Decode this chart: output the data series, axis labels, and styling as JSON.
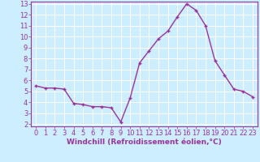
{
  "x": [
    0,
    1,
    2,
    3,
    4,
    5,
    6,
    7,
    8,
    9,
    10,
    11,
    12,
    13,
    14,
    15,
    16,
    17,
    18,
    19,
    20,
    21,
    22,
    23
  ],
  "y": [
    5.5,
    5.3,
    5.3,
    5.2,
    3.9,
    3.8,
    3.6,
    3.6,
    3.5,
    2.2,
    4.4,
    7.6,
    8.7,
    9.8,
    10.5,
    11.8,
    13.0,
    12.4,
    11.0,
    7.8,
    6.5,
    5.2,
    5.0,
    4.5
  ],
  "line_color": "#993399",
  "marker": "+",
  "marker_size": 3,
  "xlabel": "Windchill (Refroidissement éolien,°C)",
  "ylabel": "",
  "title": "",
  "xlim": [
    -0.5,
    23.5
  ],
  "ylim": [
    1.8,
    13.2
  ],
  "yticks": [
    2,
    3,
    4,
    5,
    6,
    7,
    8,
    9,
    10,
    11,
    12,
    13
  ],
  "xticks": [
    0,
    1,
    2,
    3,
    4,
    5,
    6,
    7,
    8,
    9,
    10,
    11,
    12,
    13,
    14,
    15,
    16,
    17,
    18,
    19,
    20,
    21,
    22,
    23
  ],
  "bg_color": "#cceeff",
  "grid_color": "#ffffff",
  "tick_label_color": "#993399",
  "xlabel_color": "#993399",
  "axis_label_fontsize": 6.5,
  "tick_fontsize": 6.0,
  "line_width": 1.0,
  "spine_color": "#993399"
}
